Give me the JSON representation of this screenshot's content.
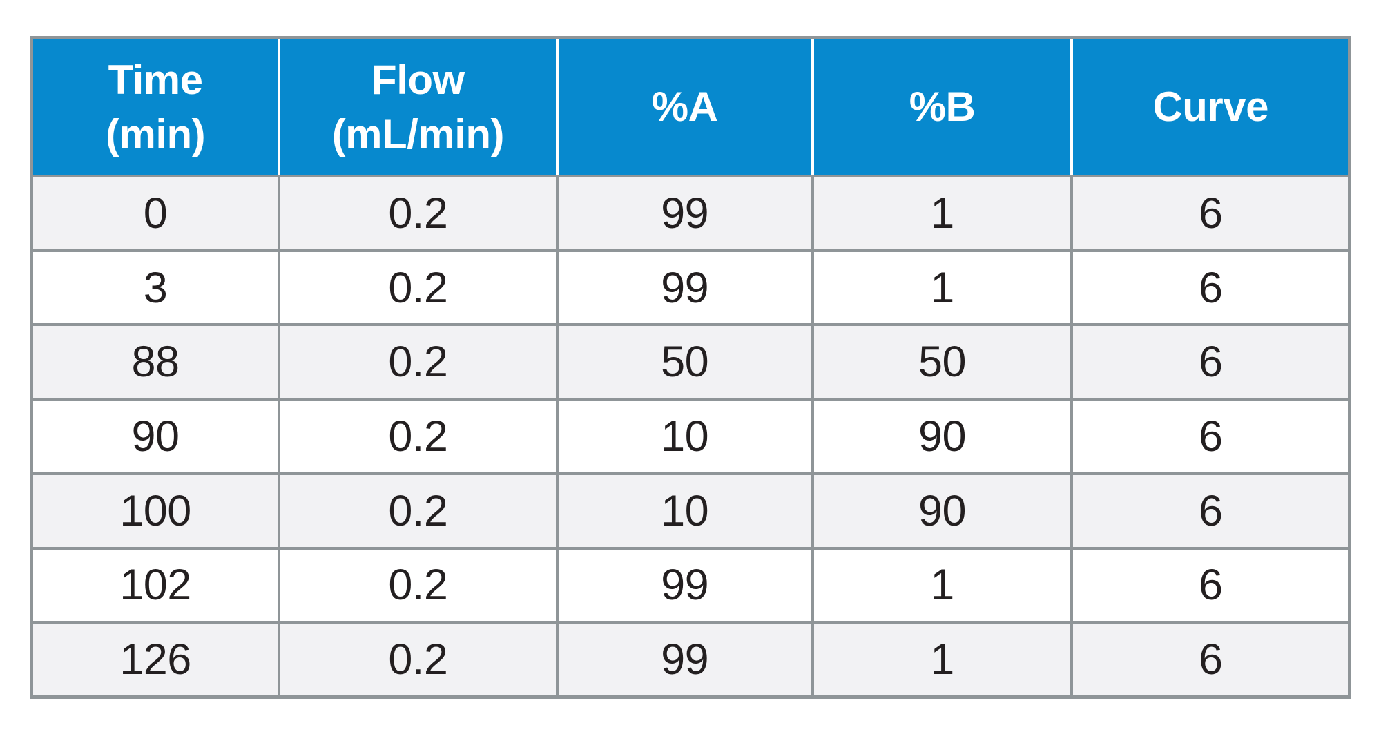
{
  "colors": {
    "header_bg": "#0789CE",
    "header_text": "#FFFFFF",
    "header_divider": "#FFFFFF",
    "grid_border": "#8F9598",
    "row_odd_bg": "#F2F2F4",
    "row_even_bg": "#FFFFFF",
    "body_text": "#231F20",
    "page_bg": "#FFFFFF"
  },
  "table": {
    "headers": [
      {
        "lines": [
          "Time",
          "(min)"
        ]
      },
      {
        "lines": [
          "Flow",
          "(mL/min)"
        ]
      },
      {
        "lines": [
          "%A"
        ]
      },
      {
        "lines": [
          "%B"
        ]
      },
      {
        "lines": [
          "Curve"
        ]
      }
    ]
  },
  "chart_data": {
    "type": "table",
    "columns": [
      "Time (min)",
      "Flow (mL/min)",
      "%A",
      "%B",
      "Curve"
    ],
    "rows": [
      [
        "0",
        "0.2",
        "99",
        "1",
        "6"
      ],
      [
        "3",
        "0.2",
        "99",
        "1",
        "6"
      ],
      [
        "88",
        "0.2",
        "50",
        "50",
        "6"
      ],
      [
        "90",
        "0.2",
        "10",
        "90",
        "6"
      ],
      [
        "100",
        "0.2",
        "10",
        "90",
        "6"
      ],
      [
        "102",
        "0.2",
        "99",
        "1",
        "6"
      ],
      [
        "126",
        "0.2",
        "99",
        "1",
        "6"
      ]
    ]
  }
}
